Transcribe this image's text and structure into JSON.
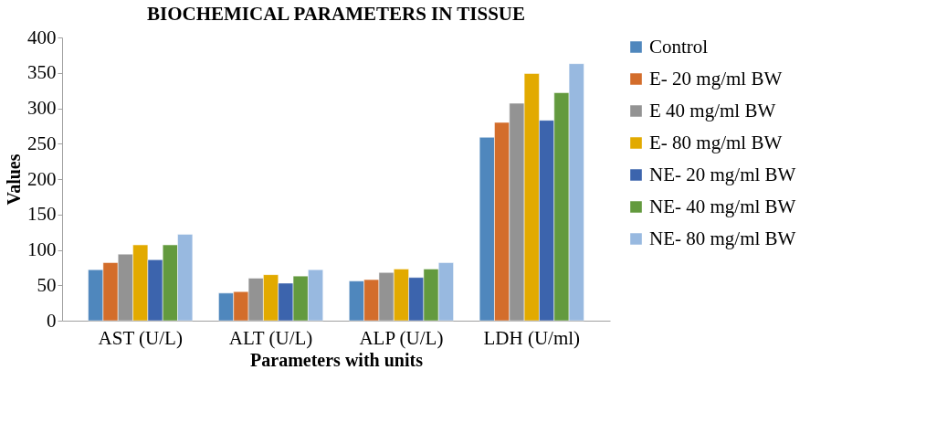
{
  "chart_data": {
    "type": "bar",
    "title": "BIOCHEMICAL PARAMETERS IN TISSUE",
    "xlabel": "Parameters with units",
    "ylabel": "Values",
    "categories": [
      "AST (U/L)",
      "ALT (U/L)",
      "ALP (U/L)",
      "LDH (U/ml)"
    ],
    "series": [
      {
        "name": "Control",
        "color": "#4f87bd",
        "values": [
          72,
          39,
          56,
          259
        ]
      },
      {
        "name": "E- 20 mg/ml BW",
        "color": "#d36d2b",
        "values": [
          82,
          41,
          58,
          280
        ]
      },
      {
        "name": "E 40 mg/ml BW",
        "color": "#939393",
        "values": [
          94,
          60,
          68,
          307
        ]
      },
      {
        "name": "E- 80 mg/ml BW",
        "color": "#e2aa00",
        "values": [
          107,
          65,
          73,
          349
        ]
      },
      {
        "name": "NE- 20 mg/ml BW",
        "color": "#3c64ad",
        "values": [
          86,
          53,
          61,
          283
        ]
      },
      {
        "name": "NE- 40 mg/ml BW",
        "color": "#639a3e",
        "values": [
          107,
          63,
          73,
          322
        ]
      },
      {
        "name": "NE- 80 mg/ml BW",
        "color": "#98b9e0",
        "values": [
          122,
          72,
          82,
          363
        ]
      }
    ],
    "ylim": [
      0,
      400
    ],
    "yticks": [
      0,
      50,
      100,
      150,
      200,
      250,
      300,
      350,
      400
    ],
    "grid": false,
    "legend": "right"
  }
}
